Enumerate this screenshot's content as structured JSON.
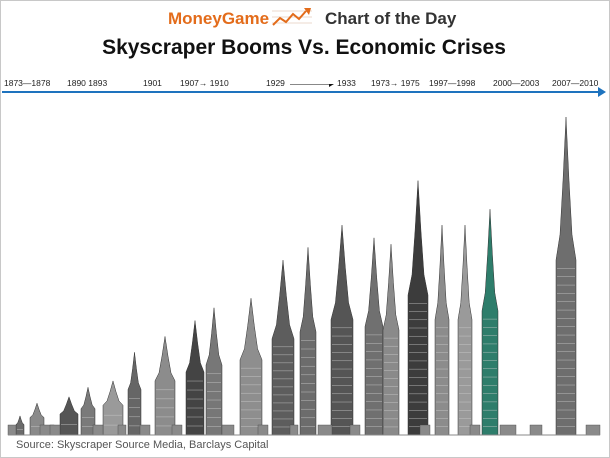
{
  "header": {
    "brand": "MoneyGame",
    "tagline": "Chart of the Day",
    "colors": {
      "brand": "#e36c1b",
      "tagline": "#333333",
      "arrow": "#e36c1b"
    }
  },
  "source": "Source: Skyscraper Source Media, Barclays Capital",
  "chart_data": {
    "type": "bar",
    "title": "Skyscraper Booms Vs. Economic Crises",
    "timeline_labels": [
      "1873—1878",
      "1890 1893",
      "1901",
      "1907→ 1910",
      "1929",
      "1933",
      "1973→ 1975",
      "1997—1998",
      "2000—2003",
      "2007—2010"
    ],
    "axis_color": "#1e73be",
    "buildings": [
      {
        "group": "1873—1878",
        "height": 6
      },
      {
        "group": "1873—1878",
        "height": 10
      },
      {
        "group": "1890 1893",
        "height": 12
      },
      {
        "group": "1890 1893",
        "height": 15
      },
      {
        "group": "1901",
        "height": 17
      },
      {
        "group": "1901",
        "height": 26
      },
      {
        "group": "1907→ 1910",
        "height": 31
      },
      {
        "group": "1907→ 1910",
        "height": 36
      },
      {
        "group": "1929",
        "height": 40
      },
      {
        "group": "1929",
        "height": 43
      },
      {
        "group": "1929",
        "height": 55
      },
      {
        "group": "1929",
        "height": 59
      },
      {
        "group": "1933",
        "height": 66
      },
      {
        "group": "1973→ 1975",
        "height": 62
      },
      {
        "group": "1973→ 1975",
        "height": 60
      },
      {
        "group": "1973→ 1975",
        "height": 80
      },
      {
        "group": "1997—1998",
        "height": 66
      },
      {
        "group": "1997—1998",
        "height": 66
      },
      {
        "group": "2000—2003",
        "height": 71
      },
      {
        "group": "2007—2010",
        "height": 100
      }
    ]
  }
}
